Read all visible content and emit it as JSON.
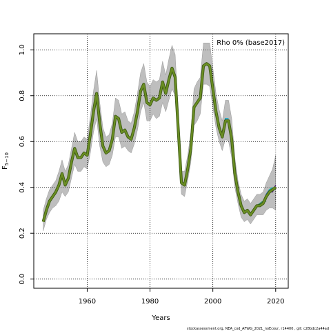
{
  "chart_data": {
    "type": "line",
    "title": "",
    "xlabel": "Years",
    "ylabel_main": "F",
    "ylabel_sub": "5−10",
    "xlim": [
      1943,
      2024
    ],
    "ylim": [
      -0.04,
      1.07
    ],
    "x_ticks": [
      1960,
      1980,
      2000,
      2020
    ],
    "x_tick_labels": [
      "1960",
      "1980",
      "2000",
      "2020"
    ],
    "y_ticks": [
      0.0,
      0.2,
      0.4,
      0.6,
      0.8,
      1.0
    ],
    "y_tick_labels": [
      "0.0",
      "0.2",
      "0.4",
      "0.6",
      "0.8",
      "1.0"
    ],
    "grid": true,
    "legend": {
      "text": "Rho 0% (base2017)",
      "position": "top-right"
    },
    "footer": "stockassessment.org,  NEA_cod_AFWG_2021_noEcour,  r14400 ,  git: c28bdc2a44ad",
    "colors": {
      "band": "#bebebe",
      "band_edge": "#888888",
      "main_line": "#6b8e23",
      "main_outline": "#3c5a14",
      "peel_1": "#1f6fbf",
      "peel_2": "#2e8b57",
      "peel_3": "#20b2aa",
      "peel_4": "#5a2d82",
      "peel_5": "#00a0c0"
    },
    "series": [
      {
        "role": "estimate",
        "x": [
          1946,
          1947,
          1948,
          1949,
          1950,
          1951,
          1952,
          1953,
          1954,
          1955,
          1956,
          1957,
          1958,
          1959,
          1960,
          1961,
          1962,
          1963,
          1964,
          1965,
          1966,
          1967,
          1968,
          1969,
          1970,
          1971,
          1972,
          1973,
          1974,
          1975,
          1976,
          1977,
          1978,
          1979,
          1980,
          1981,
          1982,
          1983,
          1984,
          1985,
          1986,
          1987,
          1988,
          1989,
          1990,
          1991,
          1992,
          1993,
          1994,
          1995,
          1996,
          1997,
          1998,
          1999,
          2000,
          2001,
          2002,
          2003,
          2004,
          2005,
          2006,
          2007,
          2008,
          2009,
          2010,
          2011,
          2012,
          2013,
          2014,
          2015,
          2016,
          2017,
          2018,
          2019,
          2020
        ],
        "y": [
          0.25,
          0.3,
          0.34,
          0.36,
          0.38,
          0.41,
          0.46,
          0.41,
          0.44,
          0.51,
          0.57,
          0.53,
          0.53,
          0.55,
          0.54,
          0.63,
          0.73,
          0.81,
          0.68,
          0.58,
          0.55,
          0.56,
          0.61,
          0.71,
          0.7,
          0.64,
          0.65,
          0.62,
          0.61,
          0.66,
          0.73,
          0.82,
          0.85,
          0.77,
          0.76,
          0.79,
          0.78,
          0.79,
          0.86,
          0.81,
          0.87,
          0.92,
          0.88,
          0.65,
          0.42,
          0.41,
          0.48,
          0.57,
          0.75,
          0.77,
          0.79,
          0.93,
          0.94,
          0.93,
          0.83,
          0.73,
          0.66,
          0.62,
          0.69,
          0.69,
          0.61,
          0.46,
          0.38,
          0.32,
          0.29,
          0.3,
          0.28,
          0.3,
          0.32,
          0.32,
          0.33,
          0.36,
          0.38,
          0.39,
          0.4
        ],
        "lower": [
          0.21,
          0.26,
          0.29,
          0.31,
          0.32,
          0.34,
          0.38,
          0.36,
          0.38,
          0.44,
          0.5,
          0.47,
          0.47,
          0.49,
          0.48,
          0.55,
          0.64,
          0.7,
          0.58,
          0.51,
          0.49,
          0.5,
          0.54,
          0.62,
          0.62,
          0.57,
          0.58,
          0.56,
          0.55,
          0.59,
          0.65,
          0.73,
          0.77,
          0.69,
          0.69,
          0.72,
          0.7,
          0.71,
          0.77,
          0.73,
          0.78,
          0.83,
          0.8,
          0.59,
          0.37,
          0.36,
          0.43,
          0.51,
          0.67,
          0.69,
          0.72,
          0.85,
          0.85,
          0.84,
          0.75,
          0.66,
          0.6,
          0.56,
          0.61,
          0.6,
          0.53,
          0.4,
          0.33,
          0.27,
          0.25,
          0.26,
          0.24,
          0.26,
          0.28,
          0.28,
          0.28,
          0.3,
          0.31,
          0.31,
          0.3
        ],
        "upper": [
          0.3,
          0.35,
          0.39,
          0.41,
          0.43,
          0.47,
          0.52,
          0.47,
          0.5,
          0.57,
          0.64,
          0.6,
          0.6,
          0.62,
          0.61,
          0.71,
          0.82,
          0.91,
          0.77,
          0.66,
          0.62,
          0.63,
          0.68,
          0.79,
          0.78,
          0.72,
          0.73,
          0.69,
          0.68,
          0.73,
          0.81,
          0.9,
          0.94,
          0.86,
          0.84,
          0.87,
          0.86,
          0.87,
          0.95,
          0.89,
          0.96,
          1.02,
          0.98,
          0.73,
          0.47,
          0.47,
          0.54,
          0.64,
          0.83,
          0.86,
          0.88,
          1.03,
          1.03,
          1.03,
          0.92,
          0.81,
          0.74,
          0.69,
          0.78,
          0.78,
          0.7,
          0.53,
          0.43,
          0.37,
          0.34,
          0.35,
          0.33,
          0.35,
          0.37,
          0.37,
          0.38,
          0.42,
          0.45,
          0.48,
          0.54
        ]
      },
      {
        "role": "peel",
        "x": [
          2015,
          2016,
          2017,
          2018
        ],
        "y": [
          0.32,
          0.33,
          0.37,
          0.39
        ]
      },
      {
        "role": "peel",
        "x": [
          2014,
          2015,
          2016,
          2017
        ],
        "y": [
          0.32,
          0.33,
          0.34,
          0.34
        ]
      },
      {
        "role": "peel",
        "x": [
          2016,
          2017,
          2018,
          2019
        ],
        "y": [
          0.33,
          0.36,
          0.39,
          0.4
        ]
      },
      {
        "role": "peel",
        "x": [
          2017,
          2018,
          2019,
          2020
        ],
        "y": [
          0.36,
          0.38,
          0.38,
          0.41
        ]
      },
      {
        "role": "peel",
        "x": [
          2003,
          2004,
          2005
        ],
        "y": [
          0.62,
          0.7,
          0.7
        ]
      }
    ]
  }
}
